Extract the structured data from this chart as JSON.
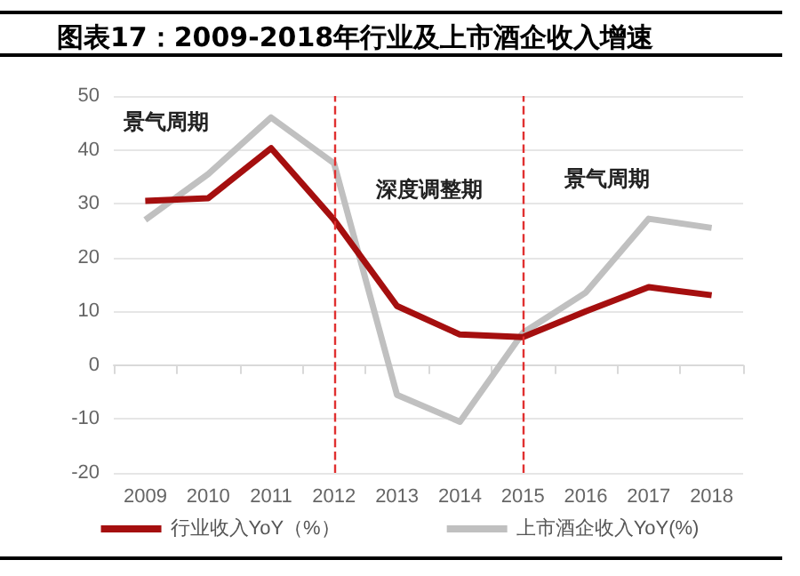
{
  "chart_data": {
    "type": "line",
    "title": "图表17：2009-2018年行业及上市酒企收入增速",
    "categories": [
      "2009",
      "2010",
      "2011",
      "2012",
      "2013",
      "2014",
      "2015",
      "2016",
      "2017",
      "2018"
    ],
    "series": [
      {
        "name": "行业收入YoY（%）",
        "color": "#a50f0f",
        "values": [
          30.5,
          31,
          40.3,
          27,
          11,
          5.7,
          5.2,
          10,
          14.5,
          13
        ]
      },
      {
        "name": "上市酒企收入YoY(%)",
        "color": "#c0c0c0",
        "values": [
          27,
          35.5,
          46,
          37.5,
          -5.5,
          -10.5,
          6,
          13.5,
          27.2,
          25.5
        ]
      }
    ],
    "ylim": [
      -20,
      50
    ],
    "yticks": [
      -20,
      -10,
      0,
      10,
      20,
      30,
      40,
      50
    ],
    "ref_lines": [
      {
        "axis": "x",
        "value": "2012",
        "color": "#e03030",
        "line_style": "dashed"
      },
      {
        "axis": "x",
        "value": "2015",
        "color": "#e03030",
        "line_style": "dashed"
      }
    ],
    "annotations": [
      "景气周期",
      "深度调整期",
      "景气周期"
    ],
    "grid": "y",
    "legend": "bottom",
    "marker": "none",
    "line_style": "solid"
  }
}
